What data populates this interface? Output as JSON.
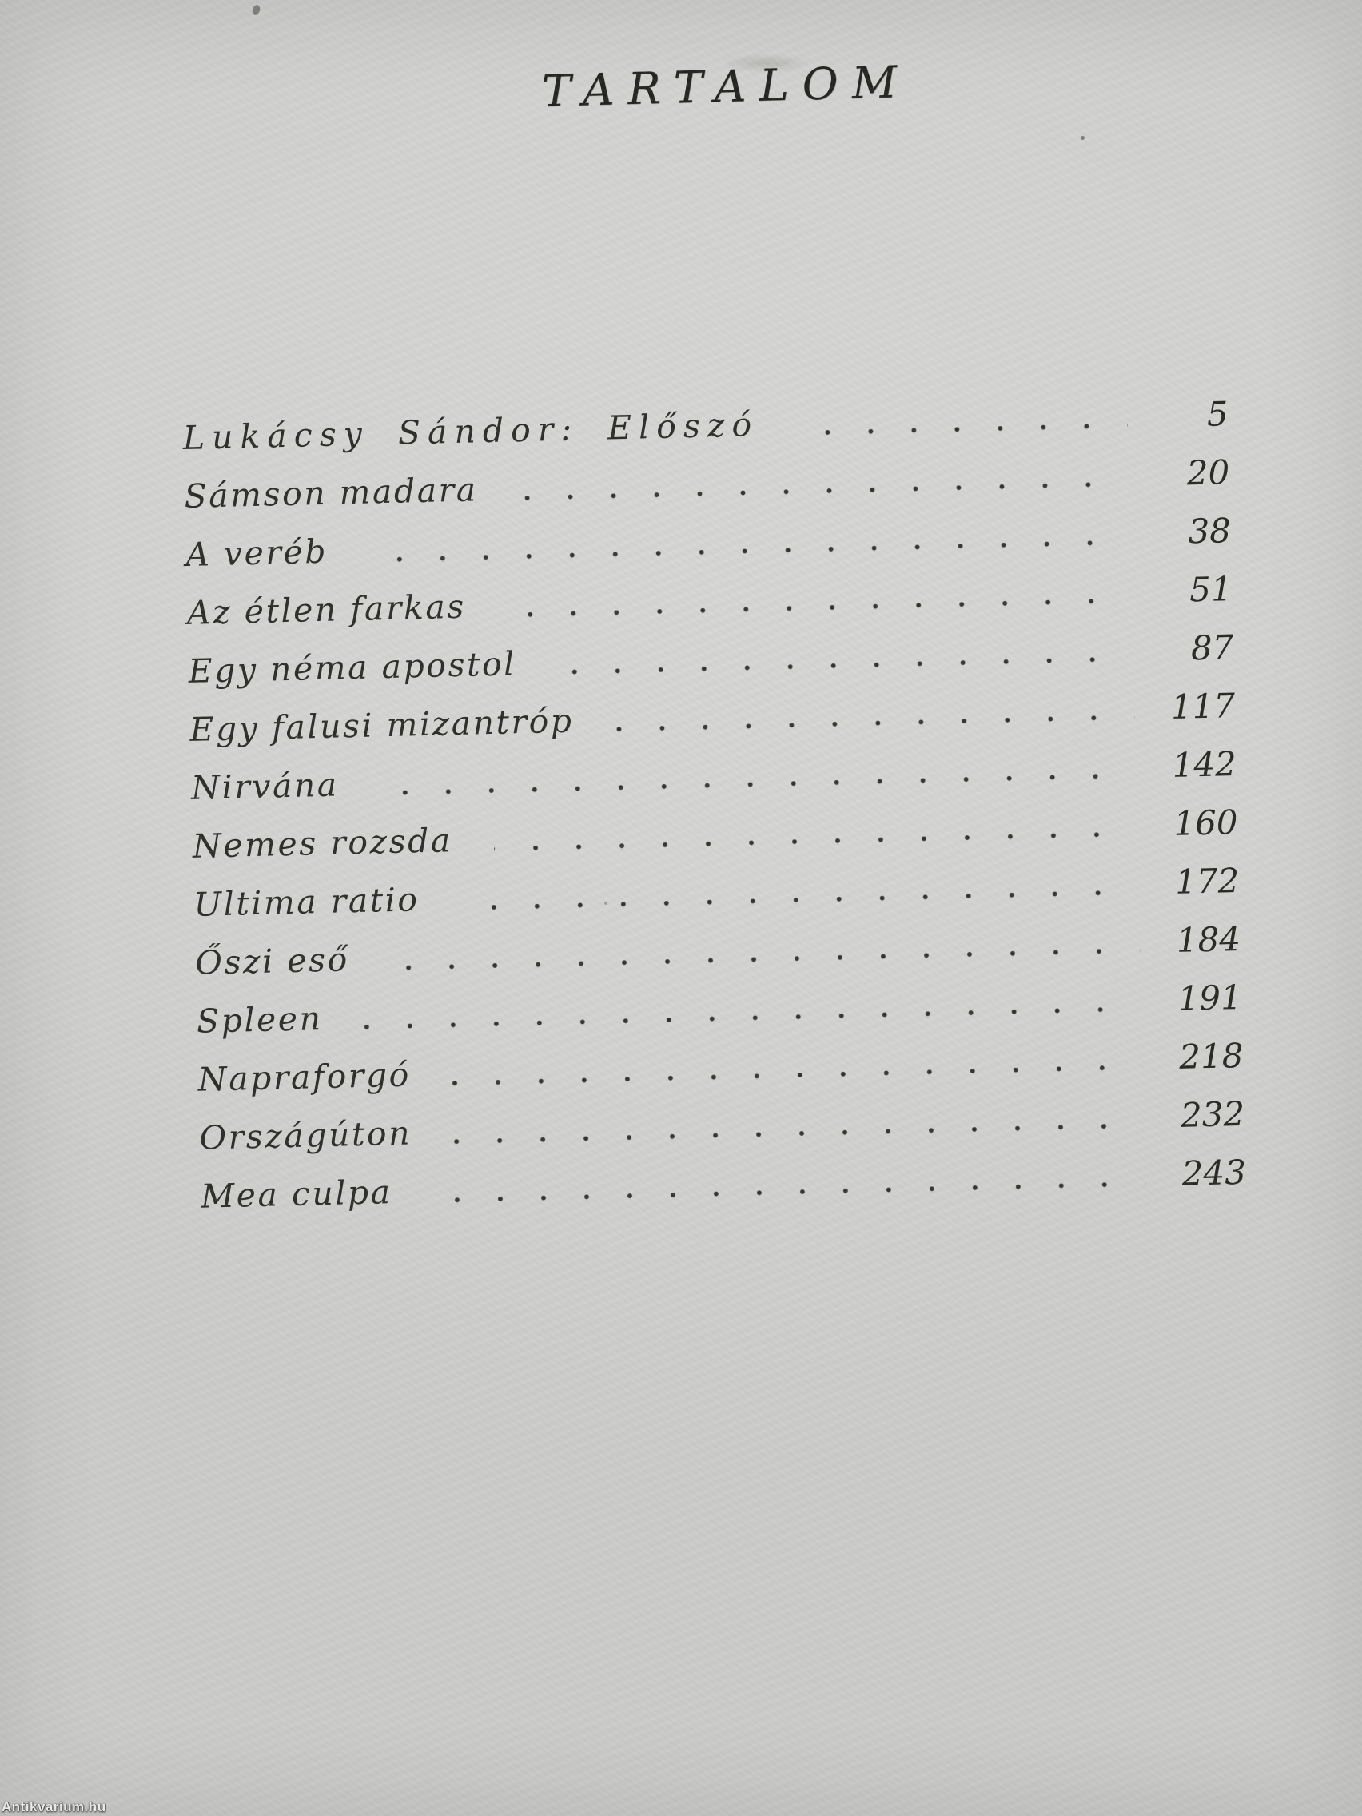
{
  "page": {
    "title": "TARTALOM",
    "watermark": "Antikvarium.hu",
    "paper_color": "#d2d2d0",
    "ink_color": "#2b2b27"
  },
  "toc": {
    "entries": [
      {
        "label": "Lukácsy Sándor: Előszó",
        "page": "5",
        "spaced": true
      },
      {
        "label": "Sámson madara",
        "page": "20",
        "spaced": false
      },
      {
        "label": "A veréb",
        "page": "38",
        "spaced": false
      },
      {
        "label": "Az étlen farkas",
        "page": "51",
        "spaced": false
      },
      {
        "label": "Egy néma apostol",
        "page": "87",
        "spaced": false
      },
      {
        "label": "Egy falusi mizantróp",
        "page": "117",
        "spaced": false
      },
      {
        "label": "Nirvána",
        "page": "142",
        "spaced": false
      },
      {
        "label": "Nemes rozsda",
        "page": "160",
        "spaced": false
      },
      {
        "label": "Ultima ratio",
        "page": "172",
        "spaced": false
      },
      {
        "label": "Őszi eső",
        "page": "184",
        "spaced": false
      },
      {
        "label": "Spleen",
        "page": "191",
        "spaced": false
      },
      {
        "label": "Napraforgó",
        "page": "218",
        "spaced": false
      },
      {
        "label": "Országúton",
        "page": "232",
        "spaced": false
      },
      {
        "label": "Mea culpa",
        "page": "243",
        "spaced": false
      }
    ]
  }
}
